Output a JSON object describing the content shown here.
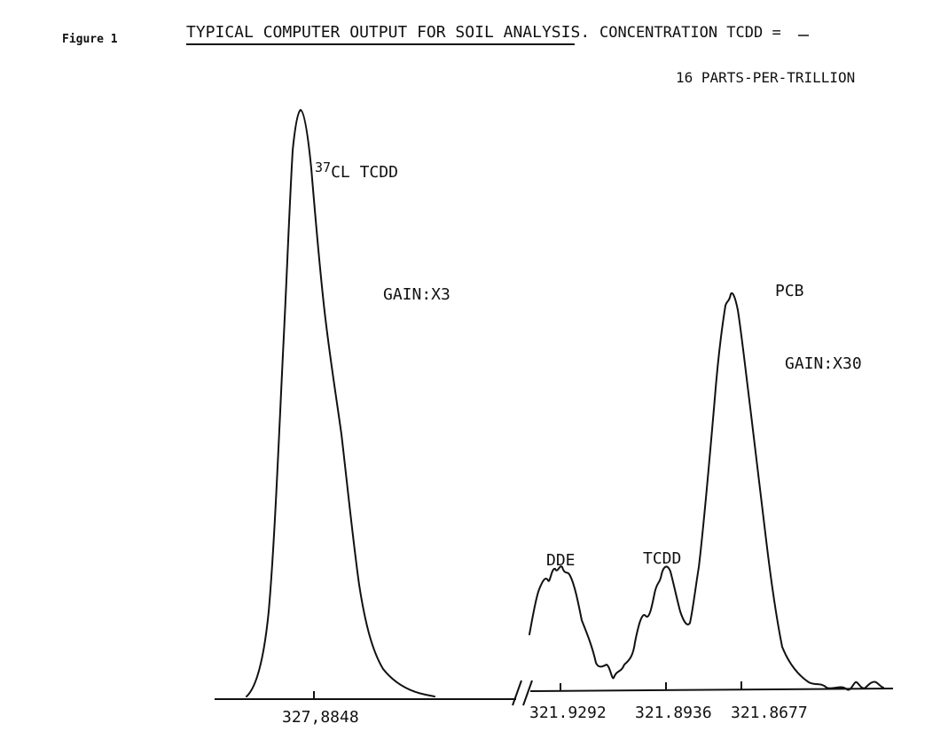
{
  "figure_label": "Figure 1",
  "title": "TYPICAL COMPUTER OUTPUT FOR SOIL ANALYSIS.",
  "concentration_label": "CONCENTRATION TCDD =",
  "concentration_value": "16 PARTS-PER-TRILLION",
  "chart_data": {
    "type": "line",
    "title": "TYPICAL COMPUTER OUTPUT FOR SOIL ANALYSIS.",
    "xlabel": "",
    "ylabel": "",
    "grid": false,
    "axis_break": true,
    "x_tick_labels": [
      "327,8848",
      "321.9292",
      "321.8936",
      "321.8677"
    ],
    "panels": [
      {
        "name": "left",
        "peak_label": "37CL TCDD",
        "gain_label": "GAIN:X3",
        "ticks": [
          "327,8848"
        ]
      },
      {
        "name": "right",
        "ticks": [
          "321.9292",
          "321.8936",
          "321.8677"
        ],
        "gain_label": "GAIN:X30",
        "peaks": [
          {
            "label": "DDE"
          },
          {
            "label": "TCDD"
          },
          {
            "label": "PCB"
          }
        ]
      }
    ]
  }
}
